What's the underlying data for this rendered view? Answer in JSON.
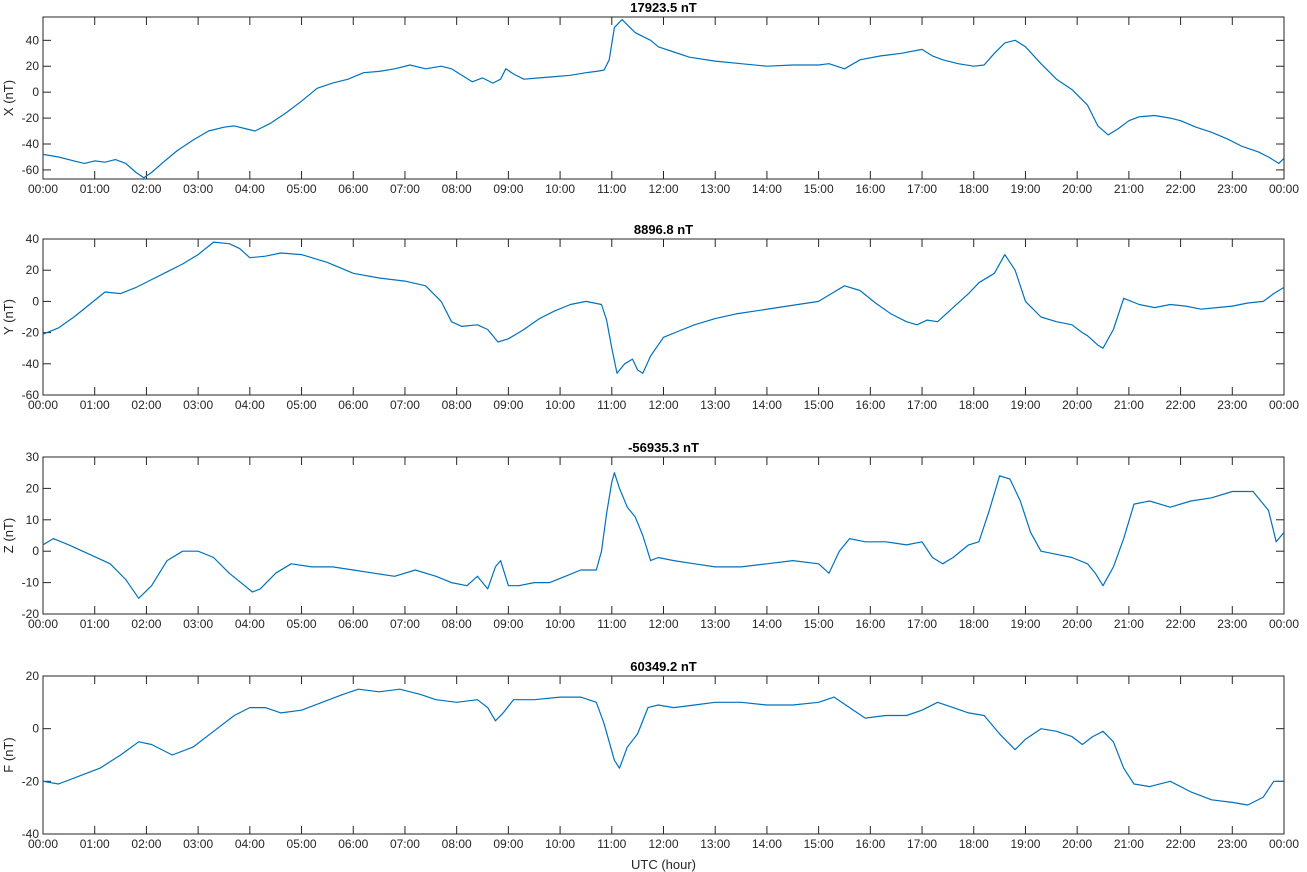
{
  "chart_data": [
    {
      "type": "line",
      "title": "17923.5 nT",
      "ylabel": "X (nT)",
      "xlabel": "",
      "xlim": [
        0,
        24
      ],
      "ylim": [
        -67,
        58
      ],
      "yticks": [
        -60,
        -40,
        -20,
        0,
        20,
        40
      ],
      "xticklabels": [
        "00:00",
        "01:00",
        "02:00",
        "03:00",
        "04:00",
        "05:00",
        "06:00",
        "07:00",
        "08:00",
        "09:00",
        "10:00",
        "11:00",
        "12:00",
        "13:00",
        "14:00",
        "15:00",
        "16:00",
        "17:00",
        "18:00",
        "19:00",
        "20:00",
        "21:00",
        "22:00",
        "23:00",
        "00:00"
      ],
      "color": "#0072BD",
      "series": [
        {
          "x": [
            0,
            0.3,
            0.6,
            0.8,
            1.0,
            1.2,
            1.4,
            1.6,
            1.8,
            1.95,
            2.1,
            2.3,
            2.6,
            2.9,
            3.2,
            3.5,
            3.7,
            3.9,
            4.1,
            4.4,
            4.7,
            5.0,
            5.3,
            5.6,
            5.9,
            6.2,
            6.5,
            6.8,
            7.1,
            7.4,
            7.7,
            7.9,
            8.1,
            8.3,
            8.5,
            8.7,
            8.85,
            8.95,
            9.1,
            9.3,
            9.6,
            9.9,
            10.2,
            10.5,
            10.7,
            10.85,
            10.95,
            11.05,
            11.2,
            11.3,
            11.45,
            11.6,
            11.75,
            11.9,
            12.2,
            12.5,
            13.0,
            13.5,
            14.0,
            14.5,
            15.0,
            15.2,
            15.5,
            15.8,
            16.2,
            16.6,
            17.0,
            17.2,
            17.4,
            17.7,
            18.0,
            18.2,
            18.4,
            18.6,
            18.8,
            19.0,
            19.3,
            19.6,
            19.9,
            20.2,
            20.4,
            20.6,
            20.8,
            21.0,
            21.2,
            21.5,
            21.8,
            22.0,
            22.3,
            22.6,
            22.9,
            23.2,
            23.5,
            23.7,
            23.9,
            24.0
          ],
          "y": [
            -48,
            -50,
            -53,
            -55,
            -53,
            -54,
            -52,
            -55,
            -62,
            -66,
            -62,
            -55,
            -45,
            -37,
            -30,
            -27,
            -26,
            -28,
            -30,
            -24,
            -16,
            -7,
            3,
            7,
            10,
            15,
            16,
            18,
            21,
            18,
            20,
            18,
            13,
            8,
            11,
            7,
            10,
            18,
            14,
            10,
            11,
            12,
            13,
            15,
            16,
            17,
            25,
            50,
            56,
            52,
            46,
            43,
            40,
            35,
            31,
            27,
            24,
            22,
            20,
            21,
            21,
            22,
            18,
            25,
            28,
            30,
            33,
            28,
            25,
            22,
            20,
            21,
            30,
            38,
            40,
            35,
            22,
            10,
            2,
            -10,
            -26,
            -33,
            -28,
            -22,
            -19,
            -18,
            -20,
            -22,
            -27,
            -31,
            -36,
            -42,
            -46,
            -50,
            -55,
            -51
          ]
        }
      ]
    },
    {
      "type": "line",
      "title": "8896.8 nT",
      "ylabel": "Y (nT)",
      "xlabel": "",
      "xlim": [
        0,
        24
      ],
      "ylim": [
        -60,
        40
      ],
      "yticks": [
        -60,
        -40,
        -20,
        0,
        20,
        40
      ],
      "xticklabels": [
        "00:00",
        "01:00",
        "02:00",
        "03:00",
        "04:00",
        "05:00",
        "06:00",
        "07:00",
        "08:00",
        "09:00",
        "10:00",
        "11:00",
        "12:00",
        "13:00",
        "14:00",
        "15:00",
        "16:00",
        "17:00",
        "18:00",
        "19:00",
        "20:00",
        "21:00",
        "22:00",
        "23:00",
        "00:00"
      ],
      "color": "#0072BD",
      "series": [
        {
          "x": [
            0,
            0.3,
            0.6,
            0.9,
            1.2,
            1.5,
            1.8,
            2.1,
            2.4,
            2.7,
            3.0,
            3.3,
            3.6,
            3.8,
            4.0,
            4.3,
            4.6,
            5.0,
            5.5,
            6.0,
            6.5,
            7.0,
            7.4,
            7.7,
            7.9,
            8.1,
            8.4,
            8.6,
            8.8,
            9.0,
            9.3,
            9.6,
            9.9,
            10.2,
            10.5,
            10.8,
            10.9,
            11.0,
            11.1,
            11.25,
            11.4,
            11.5,
            11.6,
            11.75,
            12.0,
            12.3,
            12.6,
            13.0,
            13.4,
            13.8,
            14.2,
            14.6,
            15.0,
            15.3,
            15.5,
            15.8,
            16.1,
            16.4,
            16.7,
            16.9,
            17.1,
            17.3,
            17.6,
            17.9,
            18.1,
            18.4,
            18.6,
            18.8,
            19.0,
            19.3,
            19.6,
            19.9,
            20.1,
            20.2,
            20.4,
            20.5,
            20.7,
            20.9,
            21.2,
            21.5,
            21.8,
            22.1,
            22.4,
            22.7,
            23.0,
            23.3,
            23.6,
            23.8,
            24.0
          ],
          "y": [
            -21,
            -17,
            -10,
            -2,
            6,
            5,
            9,
            14,
            19,
            24,
            30,
            38,
            37,
            34,
            28,
            29,
            31,
            30,
            25,
            18,
            15,
            13,
            10,
            0,
            -13,
            -16,
            -15,
            -18,
            -26,
            -24,
            -18,
            -11,
            -6,
            -2,
            0,
            -2,
            -12,
            -30,
            -46,
            -40,
            -37,
            -44,
            -46,
            -35,
            -23,
            -19,
            -15,
            -11,
            -8,
            -6,
            -4,
            -2,
            0,
            6,
            10,
            7,
            -1,
            -8,
            -13,
            -15,
            -12,
            -13,
            -4,
            5,
            12,
            18,
            30,
            20,
            0,
            -10,
            -13,
            -15,
            -20,
            -22,
            -28,
            -30,
            -18,
            2,
            -2,
            -4,
            -2,
            -3,
            -5,
            -4,
            -3,
            -1,
            0,
            5,
            9
          ]
        }
      ]
    },
    {
      "type": "line",
      "title": "-56935.3 nT",
      "ylabel": "Z (nT)",
      "xlabel": "",
      "xlim": [
        0,
        24
      ],
      "ylim": [
        -20,
        30
      ],
      "yticks": [
        -20,
        -10,
        0,
        10,
        20,
        30
      ],
      "xticklabels": [
        "00:00",
        "01:00",
        "02:00",
        "03:00",
        "04:00",
        "05:00",
        "06:00",
        "07:00",
        "08:00",
        "09:00",
        "10:00",
        "11:00",
        "12:00",
        "13:00",
        "14:00",
        "15:00",
        "16:00",
        "17:00",
        "18:00",
        "19:00",
        "20:00",
        "21:00",
        "22:00",
        "23:00",
        "00:00"
      ],
      "color": "#0072BD",
      "series": [
        {
          "x": [
            0,
            0.2,
            0.5,
            0.9,
            1.3,
            1.6,
            1.85,
            2.1,
            2.4,
            2.7,
            3.0,
            3.3,
            3.6,
            3.9,
            4.05,
            4.2,
            4.5,
            4.8,
            5.2,
            5.6,
            6.0,
            6.4,
            6.8,
            7.2,
            7.6,
            7.9,
            8.2,
            8.4,
            8.6,
            8.75,
            8.85,
            9.0,
            9.2,
            9.5,
            9.8,
            10.1,
            10.4,
            10.7,
            10.8,
            10.9,
            11.0,
            11.05,
            11.15,
            11.3,
            11.45,
            11.6,
            11.75,
            11.9,
            12.2,
            12.6,
            13.0,
            13.5,
            14.0,
            14.5,
            15.0,
            15.2,
            15.4,
            15.6,
            15.9,
            16.3,
            16.7,
            17.0,
            17.2,
            17.4,
            17.6,
            17.9,
            18.1,
            18.3,
            18.5,
            18.7,
            18.9,
            19.1,
            19.3,
            19.6,
            19.9,
            20.2,
            20.35,
            20.5,
            20.7,
            20.9,
            21.1,
            21.4,
            21.8,
            22.2,
            22.6,
            23.0,
            23.4,
            23.7,
            23.85,
            24.0
          ],
          "y": [
            2,
            4,
            2,
            -1,
            -4,
            -9,
            -15,
            -11,
            -3,
            0,
            0,
            -2,
            -7,
            -11,
            -13,
            -12,
            -7,
            -4,
            -5,
            -5,
            -6,
            -7,
            -8,
            -6,
            -8,
            -10,
            -11,
            -8,
            -12,
            -5,
            -3,
            -11,
            -11,
            -10,
            -10,
            -8,
            -6,
            -6,
            0,
            12,
            22,
            25,
            20,
            14,
            11,
            5,
            -3,
            -2,
            -3,
            -4,
            -5,
            -5,
            -4,
            -3,
            -4,
            -7,
            0,
            4,
            3,
            3,
            2,
            3,
            -2,
            -4,
            -2,
            2,
            3,
            13,
            24,
            23,
            16,
            6,
            0,
            -1,
            -2,
            -4,
            -7,
            -11,
            -5,
            4,
            15,
            16,
            14,
            16,
            17,
            19,
            19,
            13,
            3,
            6
          ]
        }
      ]
    },
    {
      "type": "line",
      "title": "60349.2 nT",
      "ylabel": "F (nT)",
      "xlabel": "UTC (hour)",
      "xlim": [
        0,
        24
      ],
      "ylim": [
        -40,
        20
      ],
      "yticks": [
        -40,
        -20,
        0,
        20
      ],
      "xticklabels": [
        "00:00",
        "01:00",
        "02:00",
        "03:00",
        "04:00",
        "05:00",
        "06:00",
        "07:00",
        "08:00",
        "09:00",
        "10:00",
        "11:00",
        "12:00",
        "13:00",
        "14:00",
        "15:00",
        "16:00",
        "17:00",
        "18:00",
        "19:00",
        "20:00",
        "21:00",
        "22:00",
        "23:00",
        "00:00"
      ],
      "color": "#0072BD",
      "series": [
        {
          "x": [
            0,
            0.3,
            0.7,
            1.1,
            1.5,
            1.85,
            2.1,
            2.5,
            2.9,
            3.3,
            3.7,
            4.0,
            4.3,
            4.6,
            5.0,
            5.4,
            5.8,
            6.1,
            6.5,
            6.9,
            7.3,
            7.6,
            8.0,
            8.4,
            8.6,
            8.75,
            8.9,
            9.1,
            9.5,
            10.0,
            10.4,
            10.7,
            10.85,
            10.95,
            11.05,
            11.15,
            11.3,
            11.5,
            11.7,
            11.9,
            12.2,
            12.6,
            13.0,
            13.5,
            14.0,
            14.5,
            15.0,
            15.3,
            15.6,
            15.9,
            16.3,
            16.7,
            17.0,
            17.3,
            17.6,
            17.9,
            18.2,
            18.5,
            18.8,
            19.0,
            19.3,
            19.6,
            19.9,
            20.1,
            20.3,
            20.5,
            20.7,
            20.9,
            21.1,
            21.4,
            21.8,
            22.2,
            22.6,
            23.0,
            23.3,
            23.6,
            23.8,
            24.0
          ],
          "y": [
            -20,
            -21,
            -18,
            -15,
            -10,
            -5,
            -6,
            -10,
            -7,
            -1,
            5,
            8,
            8,
            6,
            7,
            10,
            13,
            15,
            14,
            15,
            13,
            11,
            10,
            11,
            8,
            3,
            6,
            11,
            11,
            12,
            12,
            10,
            2,
            -5,
            -12,
            -15,
            -7,
            -2,
            8,
            9,
            8,
            9,
            10,
            10,
            9,
            9,
            10,
            12,
            8,
            4,
            5,
            5,
            7,
            10,
            8,
            6,
            5,
            -2,
            -8,
            -4,
            0,
            -1,
            -3,
            -6,
            -3,
            -1,
            -5,
            -15,
            -21,
            -22,
            -20,
            -24,
            -27,
            -28,
            -29,
            -26,
            -20,
            -20
          ]
        }
      ]
    }
  ]
}
